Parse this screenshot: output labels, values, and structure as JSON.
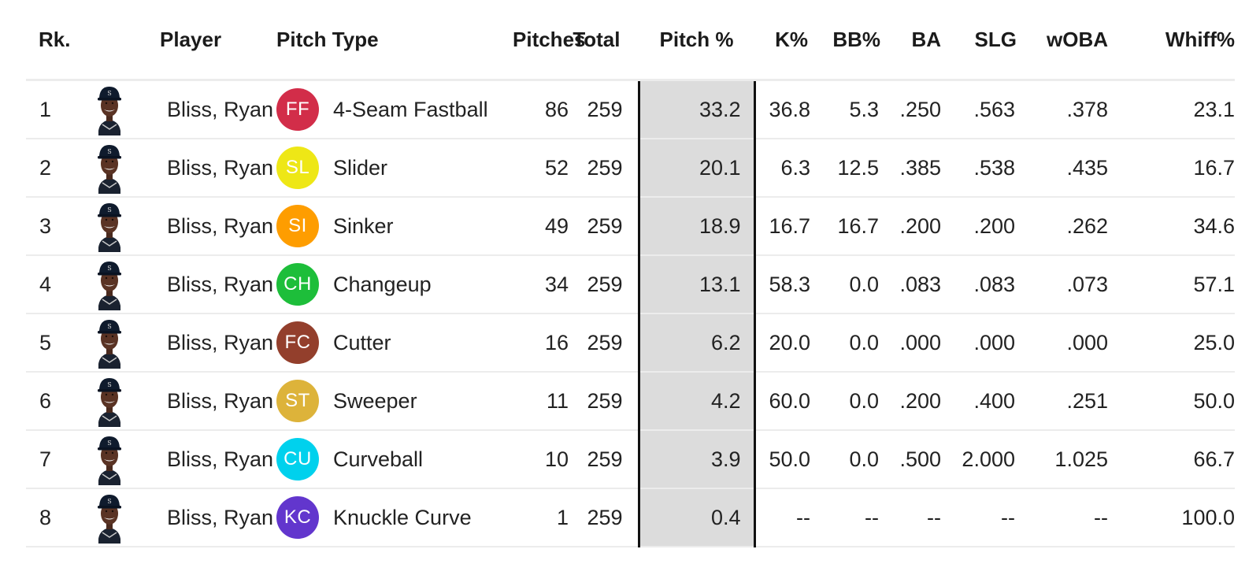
{
  "columns": {
    "rank": "Rk.",
    "player": "Player",
    "pitch_type": "Pitch Type",
    "pitches": "Pitches",
    "total": "Total",
    "pitch_pct": "Pitch %",
    "k_pct": "K%",
    "bb_pct": "BB%",
    "ba": "BA",
    "slg": "SLG",
    "woba": "wOBA",
    "whiff_pct": "Whiff%"
  },
  "rows": [
    {
      "rank": "1",
      "player": "Bliss, Ryan",
      "code": "FF",
      "color": "#d22d49",
      "pitch": "4-Seam Fastball",
      "pitches": "86",
      "total": "259",
      "pitch_pct": "33.2",
      "k": "36.8",
      "bb": "5.3",
      "ba": ".250",
      "slg": ".563",
      "woba": ".378",
      "whiff": "23.1"
    },
    {
      "rank": "2",
      "player": "Bliss, Ryan",
      "code": "SL",
      "color": "#eee716",
      "pitch": "Slider",
      "pitches": "52",
      "total": "259",
      "pitch_pct": "20.1",
      "k": "6.3",
      "bb": "12.5",
      "ba": ".385",
      "slg": ".538",
      "woba": ".435",
      "whiff": "16.7"
    },
    {
      "rank": "3",
      "player": "Bliss, Ryan",
      "code": "SI",
      "color": "#fe9d00",
      "pitch": "Sinker",
      "pitches": "49",
      "total": "259",
      "pitch_pct": "18.9",
      "k": "16.7",
      "bb": "16.7",
      "ba": ".200",
      "slg": ".200",
      "woba": ".262",
      "whiff": "34.6"
    },
    {
      "rank": "4",
      "player": "Bliss, Ryan",
      "code": "CH",
      "color": "#1dbe3a",
      "pitch": "Changeup",
      "pitches": "34",
      "total": "259",
      "pitch_pct": "13.1",
      "k": "58.3",
      "bb": "0.0",
      "ba": ".083",
      "slg": ".083",
      "woba": ".073",
      "whiff": "57.1"
    },
    {
      "rank": "5",
      "player": "Bliss, Ryan",
      "code": "FC",
      "color": "#933f2c",
      "pitch": "Cutter",
      "pitches": "16",
      "total": "259",
      "pitch_pct": "6.2",
      "k": "20.0",
      "bb": "0.0",
      "ba": ".000",
      "slg": ".000",
      "woba": ".000",
      "whiff": "25.0"
    },
    {
      "rank": "6",
      "player": "Bliss, Ryan",
      "code": "ST",
      "color": "#ddb33a",
      "pitch": "Sweeper",
      "pitches": "11",
      "total": "259",
      "pitch_pct": "4.2",
      "k": "60.0",
      "bb": "0.0",
      "ba": ".200",
      "slg": ".400",
      "woba": ".251",
      "whiff": "50.0"
    },
    {
      "rank": "7",
      "player": "Bliss, Ryan",
      "code": "CU",
      "color": "#00d1ed",
      "pitch": "Curveball",
      "pitches": "10",
      "total": "259",
      "pitch_pct": "3.9",
      "k": "50.0",
      "bb": "0.0",
      "ba": ".500",
      "slg": "2.000",
      "woba": "1.025",
      "whiff": "66.7"
    },
    {
      "rank": "8",
      "player": "Bliss, Ryan",
      "code": "KC",
      "color": "#6236cd",
      "pitch": "Knuckle Curve",
      "pitches": "1",
      "total": "259",
      "pitch_pct": "0.4",
      "k": "--",
      "bb": "--",
      "ba": "--",
      "slg": "--",
      "woba": "--",
      "whiff": "100.0"
    }
  ],
  "icons": {
    "headshot": "player-headshot-icon"
  }
}
